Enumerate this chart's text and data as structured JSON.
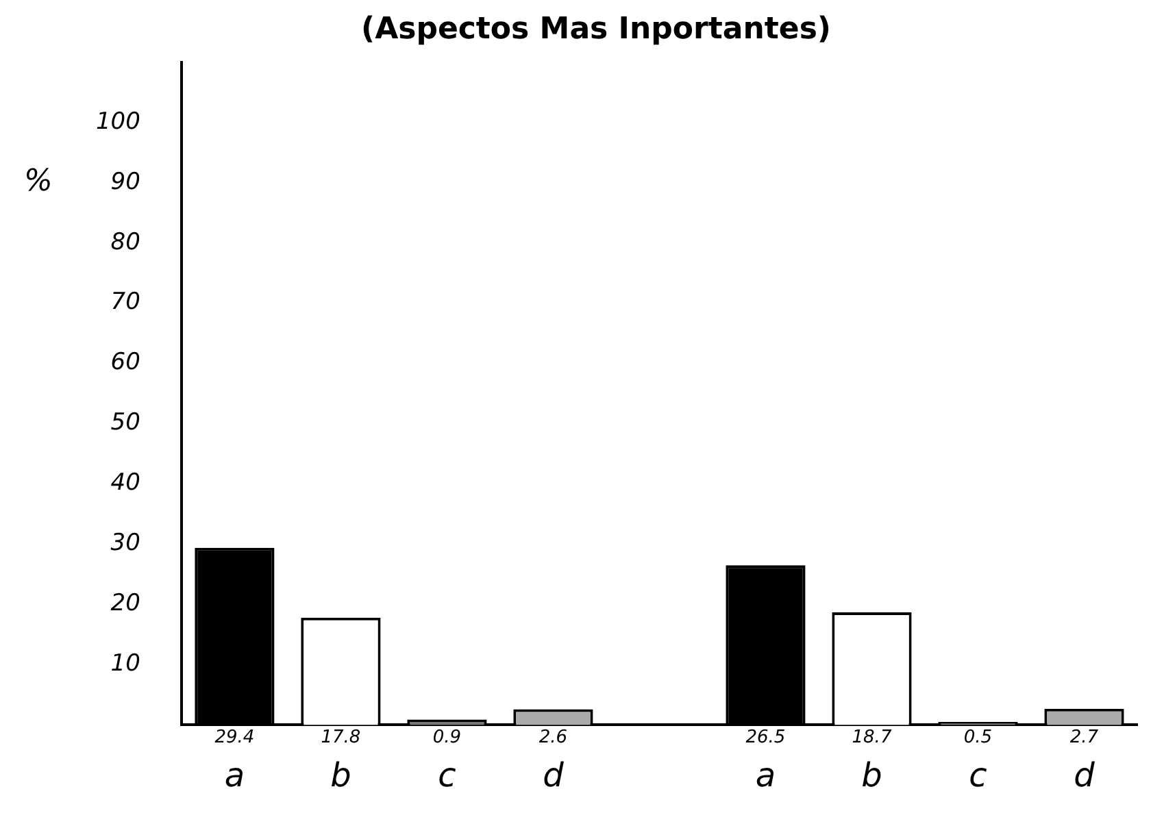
{
  "chart_data": {
    "type": "bar",
    "title": "(Aspectos Mas Inportantes)",
    "ylabel": "%",
    "categories": [
      "a",
      "b",
      "c",
      "d",
      null,
      "a",
      "b",
      "c",
      "d"
    ],
    "values": [
      29.4,
      17.8,
      0.9,
      2.6,
      null,
      26.5,
      18.7,
      0.5,
      2.7
    ],
    "colors": [
      "#000000",
      "#ffffff",
      "#777777",
      "#aaaaaa",
      null,
      "#000000",
      "#ffffff",
      "#777777",
      "#aaaaaa"
    ],
    "ylim": [
      0,
      110
    ],
    "yticks": [
      10,
      20,
      30,
      40,
      50,
      60,
      70,
      80,
      90,
      100
    ],
    "data_labels": true,
    "grid": false,
    "legend": false
  }
}
